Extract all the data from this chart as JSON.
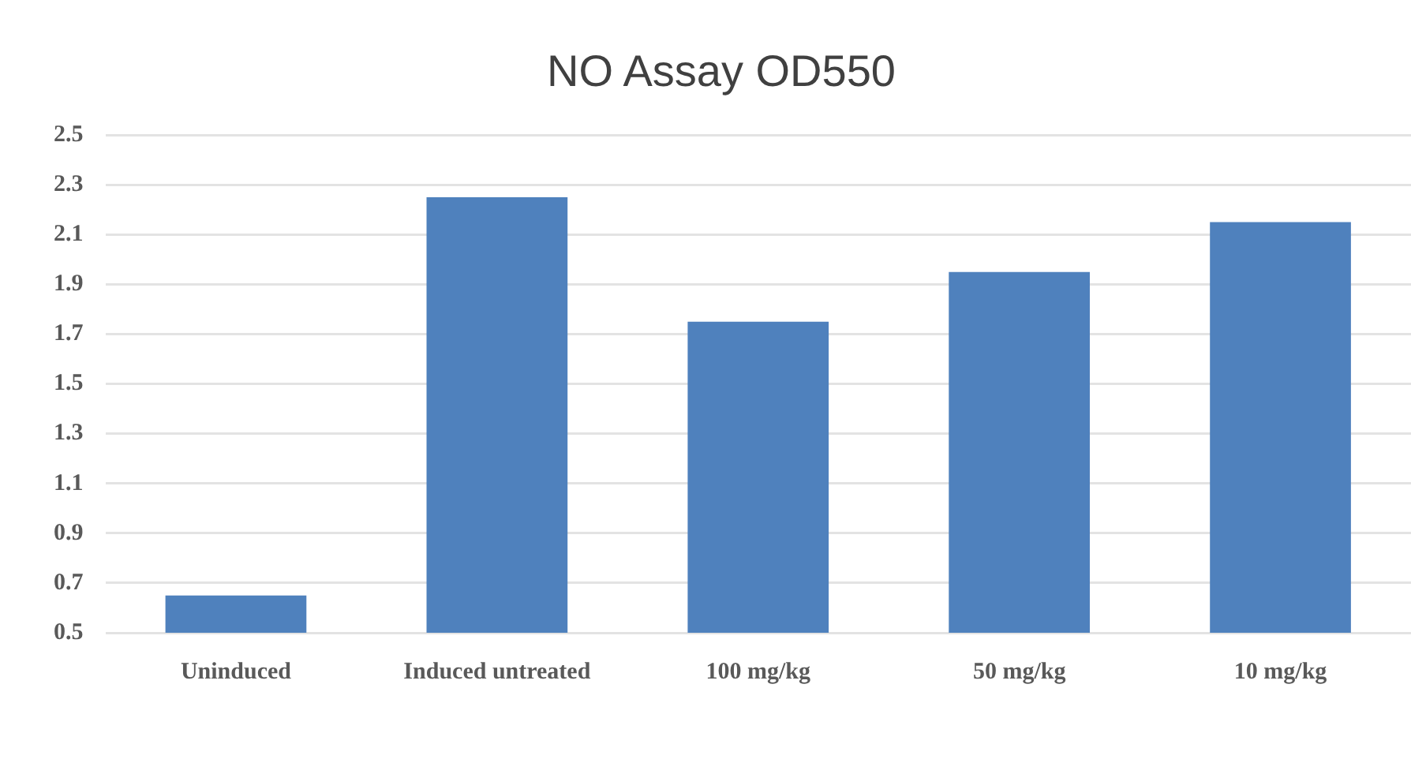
{
  "chart_data": {
    "type": "bar",
    "title": "NO Assay OD550",
    "categories": [
      "Uninduced",
      "Induced untreated",
      "100 mg/kg",
      "50 mg/kg",
      "10 mg/kg"
    ],
    "values": [
      0.65,
      2.25,
      1.75,
      1.95,
      2.15
    ],
    "color": "#4f81bd",
    "ylim": [
      0.5,
      2.5
    ],
    "yticks": [
      0.5,
      0.7,
      0.9,
      1.1,
      1.3,
      1.5,
      1.7,
      1.9,
      2.1,
      2.3,
      2.5
    ],
    "grid": "y",
    "legend": false
  }
}
